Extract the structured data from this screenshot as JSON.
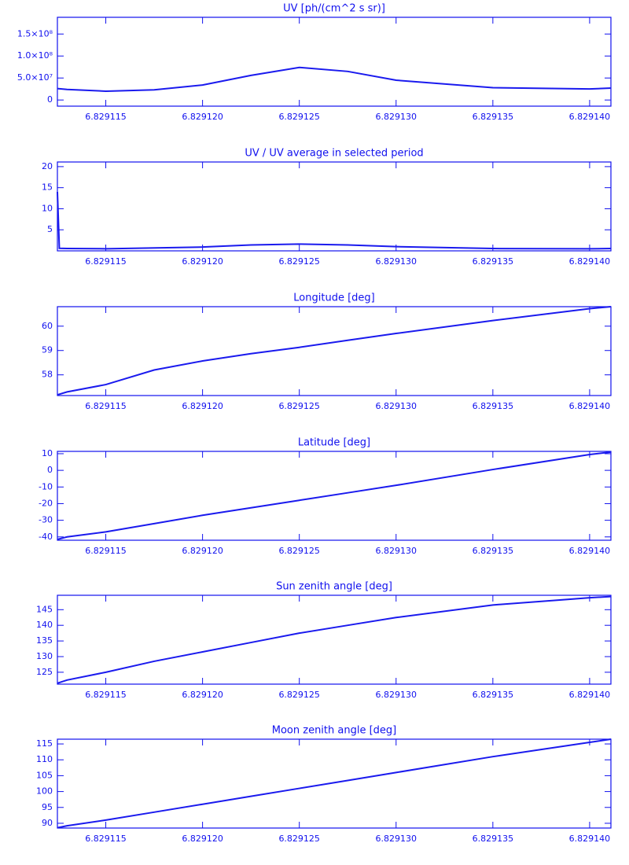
{
  "chart_data": [
    {
      "type": "line",
      "title": "UV [ph/(cm^2 s sr)]",
      "color": "#1a1aee",
      "x": [
        6.8291125,
        6.829113,
        6.829115,
        6.8291175,
        6.82912,
        6.8291225,
        6.829125,
        6.8291275,
        6.82913,
        6.829135,
        6.82914,
        6.8291411
      ],
      "values": [
        26000000,
        24000000,
        20000000,
        23000000,
        34000000,
        56000000,
        74000000,
        65000000,
        45000000,
        28000000,
        25000000,
        27000000
      ],
      "xlim": [
        6.8291125,
        6.8291411
      ],
      "xticks": [
        6.829115,
        {
          "value": 6.82912,
          "label": "6.829120"
        },
        6.829125,
        {
          "value": 6.82913,
          "label": "6.829130"
        },
        6.829135,
        {
          "value": 6.82914,
          "label": "6.829140"
        }
      ],
      "ylim": [
        -14000000,
        188000000
      ],
      "yticks": [
        0,
        {
          "value": 50000000,
          "label": "5.0×10⁷"
        },
        {
          "value": 100000000,
          "label": "1.0×10⁸"
        },
        {
          "value": 150000000,
          "label": "1.5×10⁸"
        }
      ]
    },
    {
      "type": "line",
      "title": "UV / UV average in selected period",
      "color": "#1a1aee",
      "x": [
        6.8291125,
        6.8291126,
        6.829113,
        6.829115,
        6.82912,
        6.8291225,
        6.829125,
        6.8291275,
        6.82913,
        6.829135,
        6.82914,
        6.8291411
      ],
      "values": [
        14,
        0.6,
        0.55,
        0.5,
        0.9,
        1.4,
        1.6,
        1.4,
        1.0,
        0.55,
        0.5,
        0.55
      ],
      "xlim": [
        6.8291125,
        6.8291411
      ],
      "xticks": [
        6.829115,
        {
          "value": 6.82912,
          "label": "6.829120"
        },
        6.829125,
        {
          "value": 6.82913,
          "label": "6.829130"
        },
        6.829135,
        {
          "value": 6.82914,
          "label": "6.829140"
        }
      ],
      "ylim": [
        0,
        21.1
      ],
      "yticks": [
        5,
        10,
        15,
        20
      ]
    },
    {
      "type": "line",
      "title": "Longitude [deg]",
      "color": "#1a1aee",
      "x": [
        6.8291125,
        6.829113,
        6.829115,
        6.8291175,
        6.82912,
        6.8291225,
        6.829125,
        6.8291275,
        6.82913,
        6.829135,
        6.82914,
        6.8291411
      ],
      "values": [
        57.18,
        57.3,
        57.6,
        58.2,
        58.57,
        58.87,
        59.13,
        59.42,
        59.7,
        60.23,
        60.72,
        60.8
      ],
      "xlim": [
        6.8291125,
        6.8291411
      ],
      "xticks": [
        6.829115,
        {
          "value": 6.82912,
          "label": "6.829120"
        },
        6.829125,
        {
          "value": 6.82913,
          "label": "6.829130"
        },
        6.829135,
        {
          "value": 6.82914,
          "label": "6.829140"
        }
      ],
      "ylim": [
        57.15,
        60.8
      ],
      "yticks": [
        58,
        59,
        60
      ]
    },
    {
      "type": "line",
      "title": "Latitude [deg]",
      "color": "#1a1aee",
      "x": [
        6.8291125,
        6.829113,
        6.829115,
        6.8291175,
        6.82912,
        6.8291225,
        6.829125,
        6.8291275,
        6.82913,
        6.829135,
        6.82914,
        6.8291411
      ],
      "values": [
        -41.5,
        -40,
        -37,
        -32,
        -27,
        -22.5,
        -18,
        -13.5,
        -9,
        0.5,
        9.5,
        11
      ],
      "xlim": [
        6.8291125,
        6.8291411
      ],
      "xticks": [
        6.829115,
        {
          "value": 6.82912,
          "label": "6.829120"
        },
        6.829125,
        {
          "value": 6.82913,
          "label": "6.829130"
        },
        6.829135,
        {
          "value": 6.82914,
          "label": "6.829140"
        }
      ],
      "ylim": [
        -42,
        11.4
      ],
      "yticks": [
        -40,
        -30,
        -20,
        -10,
        0,
        10
      ]
    },
    {
      "type": "line",
      "title": "Sun zenith angle [deg]",
      "color": "#1a1aee",
      "x": [
        6.8291125,
        6.829113,
        6.829115,
        6.8291175,
        6.82912,
        6.8291225,
        6.829125,
        6.8291275,
        6.82913,
        6.829135,
        6.82914,
        6.8291411
      ],
      "values": [
        121.5,
        122.5,
        125,
        128.5,
        131.5,
        134.5,
        137.5,
        140,
        142.5,
        146.5,
        148.8,
        149.2
      ],
      "xlim": [
        6.8291125,
        6.8291411
      ],
      "xticks": [
        6.829115,
        {
          "value": 6.82912,
          "label": "6.829120"
        },
        6.829125,
        {
          "value": 6.82913,
          "label": "6.829130"
        },
        6.829135,
        {
          "value": 6.82914,
          "label": "6.829140"
        }
      ],
      "ylim": [
        121.2,
        149.6
      ],
      "yticks": [
        125,
        130,
        135,
        140,
        145
      ]
    },
    {
      "type": "line",
      "title": "Moon zenith angle [deg]",
      "color": "#1a1aee",
      "x": [
        6.8291125,
        6.829113,
        6.829115,
        6.8291175,
        6.82912,
        6.8291225,
        6.829125,
        6.8291275,
        6.82913,
        6.829135,
        6.82914,
        6.8291411
      ],
      "values": [
        88.6,
        89.2,
        91,
        93.5,
        96,
        98.5,
        101,
        103.5,
        106,
        111,
        115.5,
        116.5
      ],
      "xlim": [
        6.8291125,
        6.8291411
      ],
      "xticks": [
        6.829115,
        {
          "value": 6.82912,
          "label": "6.829120"
        },
        6.829125,
        {
          "value": 6.82913,
          "label": "6.829130"
        },
        6.829135,
        {
          "value": 6.82914,
          "label": "6.829140"
        }
      ],
      "ylim": [
        88.5,
        116.5
      ],
      "yticks": [
        90,
        95,
        100,
        105,
        110,
        115
      ]
    }
  ]
}
